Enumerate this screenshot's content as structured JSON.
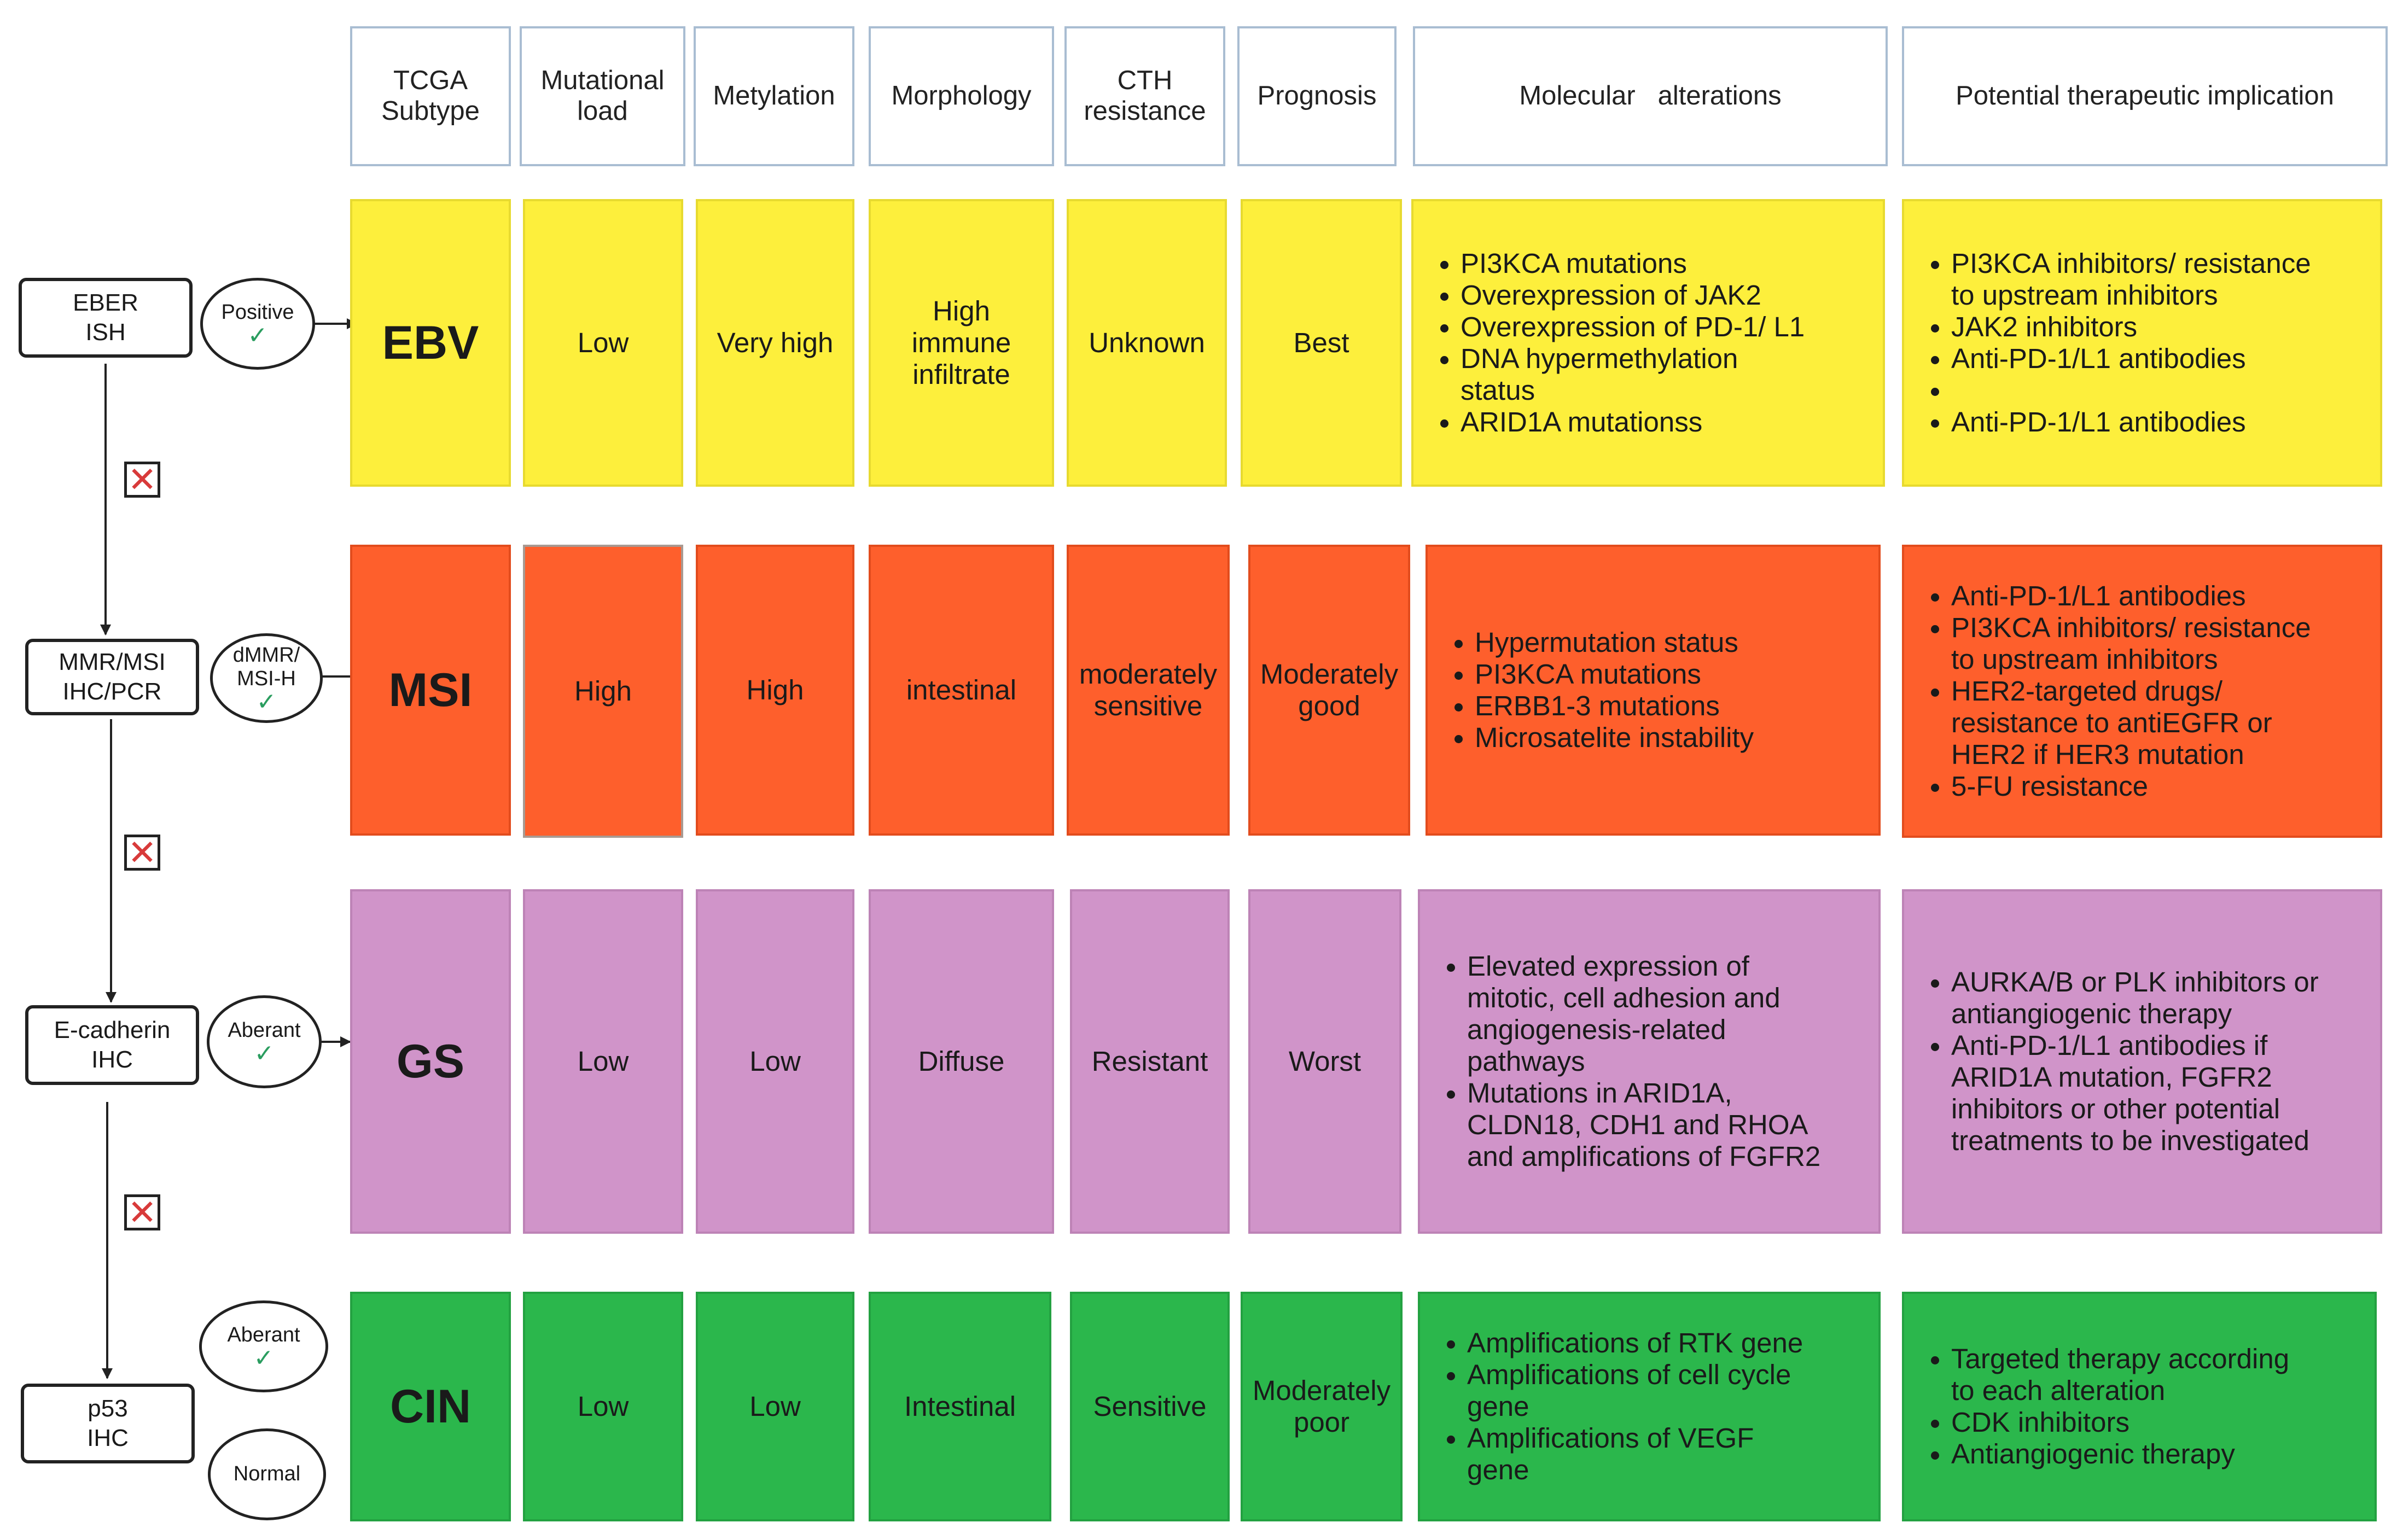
{
  "headers": {
    "subtype": "TCGA Subtype",
    "mutational_load": "Mutational load",
    "metylation": "Metylation",
    "morphology": "Morphology",
    "cth_resistance": "CTH resistance",
    "prognosis": "Prognosis",
    "molecular": "Molecular   alterations",
    "therapeutic": "Potential therapeutic implication"
  },
  "rows": {
    "ebv": {
      "subtype": "EBV",
      "mutational_load": "Low",
      "metylation": "Very high",
      "morphology": "High immune infiltrate",
      "cth_resistance": "Unknown",
      "prognosis": "Best",
      "molecular": [
        "PI3KCA mutations",
        "Overexpression of   JAK2",
        "Overexpression of   PD-1/ L1",
        "DNA hypermethylation status",
        "ARID1A mutationss"
      ],
      "therapeutic": [
        "PI3KCA inhibitors/ resistance   to upstream inhibitors",
        "JAK2 inhibitors",
        "Anti-PD-1/L1   antibodies",
        "",
        "Anti-PD-1/L1   antibodies"
      ]
    },
    "msi": {
      "subtype": "MSI",
      "mutational_load": "High",
      "metylation": "High",
      "morphology": "intestinal",
      "cth_resistance": "moderately sensitive",
      "prognosis": "Moderately good",
      "molecular": [
        "Hypermutation   status",
        "PI3KCA mutations",
        "ERBB1-3 mutations",
        "Microsatelite   instability"
      ],
      "therapeutic": [
        "Anti-PD-1/L1   antibodies",
        "PI3KCA inhibitors/ resistance   to upstream inhibitors",
        "HER2-targeted   drugs/ resistance to antiEGFR or HER2 if HER3 mutation",
        "5-FU resistance"
      ]
    },
    "gs": {
      "subtype": "GS",
      "mutational_load": "Low",
      "metylation": "Low",
      "morphology": "Diffuse",
      "cth_resistance": "Resistant",
      "prognosis": "Worst",
      "molecular": [
        "Elevated expression   of mitotic, cell adhesion and angiogenesis-related pathways",
        "Mutations in   ARID1A, CLDN18, CDH1 and RHOA and amplifications of FGFR2"
      ],
      "therapeutic": [
        "AURKA/B or PLK inhibitors or antiangiogenic therapy",
        "Anti-PD-1/L1   antibodies if ARID1A mutation, FGFR2 inhibitors or other potential treatments   to be investigated"
      ]
    },
    "cin": {
      "subtype": "CIN",
      "mutational_load": "Low",
      "metylation": "Low",
      "morphology": "Intestinal",
      "cth_resistance": "Sensitive",
      "prognosis": "Moderately poor",
      "molecular": [
        "Amplifications of   RTK gene",
        "Amplifications of   cell cycle gene",
        "Amplifications of VEGF gene"
      ],
      "therapeutic": [
        "Targeted therapy according to each alteration",
        "CDK inhibitors",
        "Antiangiogenic therapy"
      ]
    }
  },
  "tests": {
    "eber": "EBER ISH",
    "mmr": "MMR/MSI IHC/PCR",
    "ecad": "E-cadherin IHC",
    "p53": "p53 IHC"
  },
  "results": {
    "positive": "Positive",
    "dmmr": "dMMR/ MSI-H",
    "aberant_ecad": "Aberant",
    "aberant_p53": "Aberant",
    "normal": "Normal"
  },
  "icons": {
    "check": "check-icon",
    "cross": "red-x-icon"
  },
  "colors": {
    "ebv": "#fdef3c",
    "msi": "#fe5f2c",
    "gs": "#d094c9",
    "cin": "#2bb74c",
    "header_border": "#a9bdd2",
    "cross": "#d83a3a",
    "check": "#2a9d5f"
  }
}
